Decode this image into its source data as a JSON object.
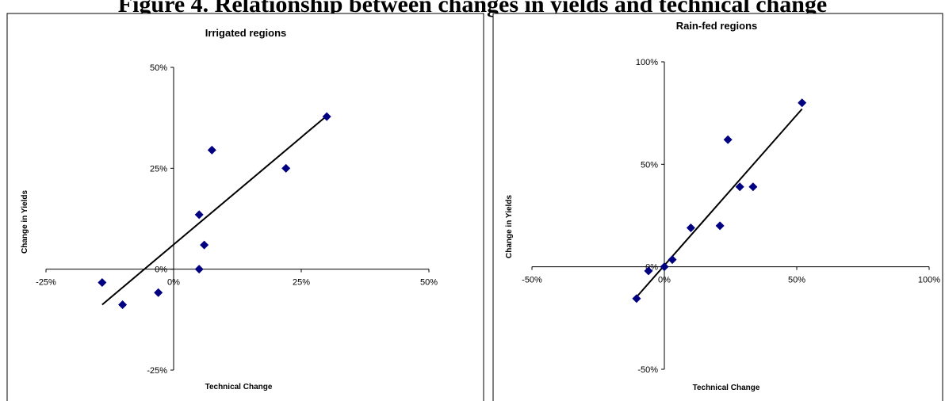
{
  "page_title": "Figure 4. Relationship between changes in yields and technical change",
  "chart_data": [
    {
      "type": "scatter",
      "title": "Irrigated regions",
      "xlabel": "Technical Change",
      "ylabel": "Change in Yields",
      "xlim": [
        -0.25,
        0.5
      ],
      "ylim": [
        -0.25,
        0.5
      ],
      "x_ticks": [
        {
          "value": -0.25,
          "label": "-25%"
        },
        {
          "value": 0,
          "label": "0%"
        },
        {
          "value": 0.25,
          "label": "25%"
        },
        {
          "value": 0.5,
          "label": "50%"
        }
      ],
      "y_ticks": [
        {
          "value": -0.25,
          "label": "-25%"
        },
        {
          "value": 0,
          "label": "0%"
        },
        {
          "value": 0.25,
          "label": "25%"
        },
        {
          "value": 0.5,
          "label": "50%"
        }
      ],
      "points": [
        {
          "x": -0.14,
          "y": -0.033
        },
        {
          "x": -0.1,
          "y": -0.088
        },
        {
          "x": -0.03,
          "y": -0.058
        },
        {
          "x": 0.05,
          "y": 0.0
        },
        {
          "x": 0.05,
          "y": 0.135
        },
        {
          "x": 0.06,
          "y": 0.06
        },
        {
          "x": 0.075,
          "y": 0.295
        },
        {
          "x": 0.22,
          "y": 0.25
        },
        {
          "x": 0.3,
          "y": 0.378
        }
      ],
      "trendline": {
        "x1": -0.14,
        "y1": -0.088,
        "x2": 0.3,
        "y2": 0.38
      },
      "marker_color": "#000080"
    },
    {
      "type": "scatter",
      "title": "Rain-fed regions",
      "xlabel": "Technical Change",
      "ylabel": "Change in Yields",
      "xlim": [
        -0.5,
        1.0
      ],
      "ylim": [
        -0.5,
        1.0
      ],
      "x_ticks": [
        {
          "value": -0.5,
          "label": "-50%"
        },
        {
          "value": 0,
          "label": "0%"
        },
        {
          "value": 0.5,
          "label": "50%"
        },
        {
          "value": 1.0,
          "label": "100%"
        }
      ],
      "y_ticks": [
        {
          "value": -0.5,
          "label": "-50%"
        },
        {
          "value": 0,
          "label": "0%"
        },
        {
          "value": 0.5,
          "label": "50%"
        },
        {
          "value": 1.0,
          "label": "100%"
        }
      ],
      "points": [
        {
          "x": -0.105,
          "y": -0.155
        },
        {
          "x": -0.06,
          "y": -0.02
        },
        {
          "x": 0.0,
          "y": 0.0
        },
        {
          "x": 0.03,
          "y": 0.035
        },
        {
          "x": 0.1,
          "y": 0.19
        },
        {
          "x": 0.21,
          "y": 0.2
        },
        {
          "x": 0.24,
          "y": 0.62
        },
        {
          "x": 0.285,
          "y": 0.39
        },
        {
          "x": 0.335,
          "y": 0.39
        },
        {
          "x": 0.52,
          "y": 0.8
        }
      ],
      "trendline": {
        "x1": -0.1,
        "y1": -0.14,
        "x2": 0.52,
        "y2": 0.77
      },
      "marker_color": "#000080"
    }
  ]
}
